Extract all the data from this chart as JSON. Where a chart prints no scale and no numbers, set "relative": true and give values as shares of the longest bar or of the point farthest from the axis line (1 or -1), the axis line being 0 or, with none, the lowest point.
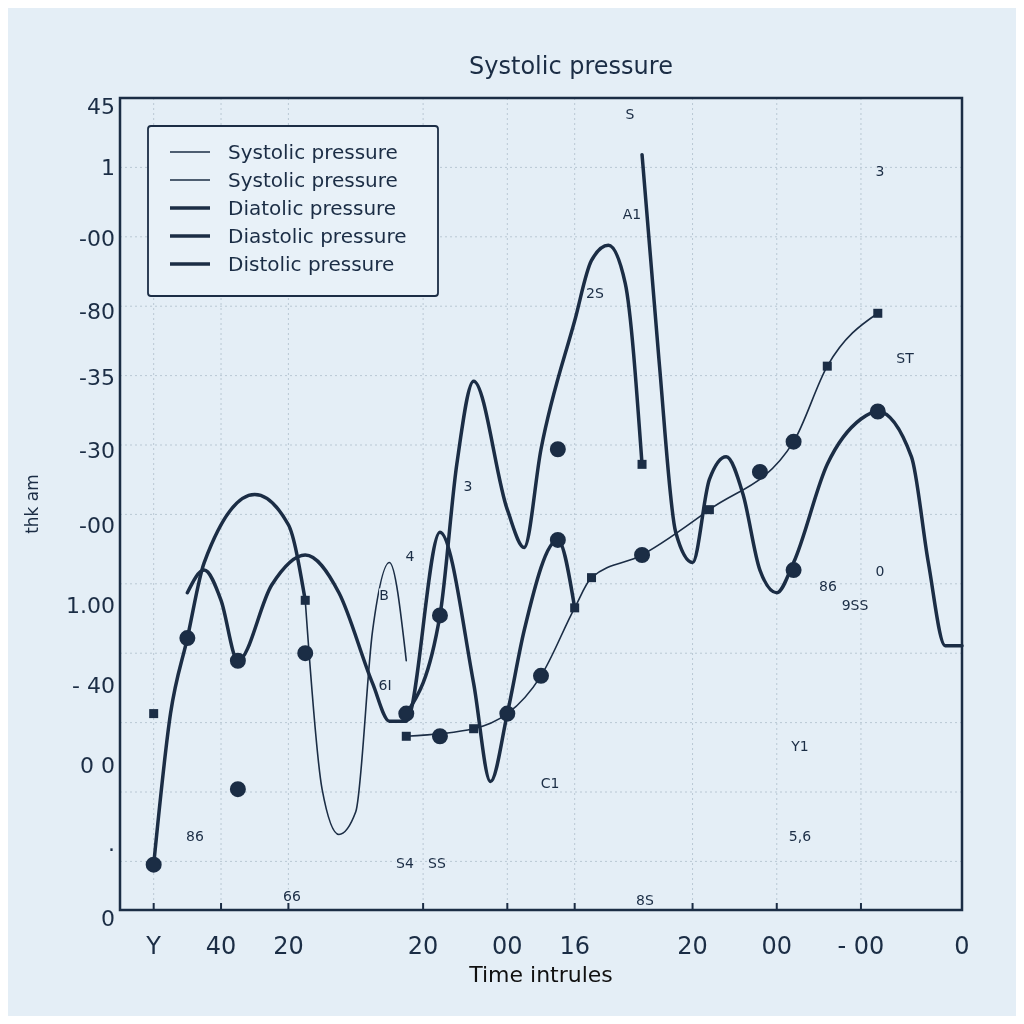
{
  "chart_data": {
    "type": "line",
    "title": "Systolic pressure",
    "xlabel": "Time intrules",
    "ylabel": "thk am",
    "relative": true,
    "categories": [
      null,
      null,
      "Y",
      null,
      null,
      null,
      "40",
      null,
      null,
      null,
      "20",
      null,
      null,
      null,
      null,
      null,
      null,
      null,
      "20",
      null,
      null,
      null,
      null,
      "00",
      null,
      null,
      null,
      "16",
      null,
      null,
      null,
      null,
      null,
      null,
      "20",
      null,
      null,
      null,
      null,
      "00",
      null,
      null,
      null,
      null,
      "- 00",
      null,
      null,
      null,
      null,
      null,
      "0"
    ],
    "grid": true,
    "legend": "top left",
    "line_style": "solid",
    "series": [
      {
        "name": "Systolic pressure",
        "color": "#1b2d45",
        "values": [
          null,
          null,
          null,
          null,
          null,
          null,
          null,
          null,
          null,
          null,
          null,
          null,
          null,
          null,
          null,
          null,
          null,
          0.23,
          null,
          null,
          null,
          0.24,
          null,
          null,
          null,
          0.31,
          null,
          0.4,
          0.44,
          null,
          null,
          0.47,
          null,
          null,
          null,
          0.53,
          null,
          null,
          null,
          null,
          0.62,
          null,
          0.72,
          null,
          null,
          0.79,
          null,
          null,
          null,
          null,
          null
        ]
      },
      {
        "name": "Systolic pressure",
        "color": "#1b2d45",
        "values": [
          null,
          null,
          null,
          null,
          null,
          null,
          null,
          null,
          null,
          null,
          null,
          0.41,
          0.16,
          0.1,
          0.13,
          0.37,
          0.46,
          0.33,
          null,
          null,
          null,
          null,
          null,
          null,
          null,
          null,
          null,
          null,
          null,
          null,
          null,
          null,
          null,
          null,
          null,
          null,
          null,
          null,
          null,
          null,
          null,
          null,
          null,
          null,
          null,
          null,
          null,
          null,
          null,
          null,
          null
        ]
      },
      {
        "name": "Diatolic pressure",
        "color": "#1b2d45",
        "values": [
          null,
          null,
          null,
          null,
          null,
          null,
          null,
          null,
          null,
          null,
          null,
          null,
          null,
          null,
          null,
          null,
          null,
          0.26,
          null,
          0.39,
          0.59,
          0.7,
          null,
          0.53,
          0.48,
          0.61,
          null,
          0.78,
          0.86,
          0.88,
          0.83,
          0.59,
          null,
          null,
          null,
          null,
          null,
          null,
          null,
          null,
          null,
          null,
          null,
          null,
          null,
          null,
          null,
          null,
          null,
          null,
          null
        ]
      },
      {
        "name": "Diastolic pressure",
        "color": "#1b2d45",
        "values": [
          null,
          null,
          0.06,
          0.26,
          0.36,
          0.46,
          null,
          null,
          0.55,
          null,
          0.51,
          0.41,
          null,
          null,
          null,
          null,
          null,
          null,
          null,
          null,
          null,
          null,
          null,
          null,
          null,
          null,
          null,
          null,
          null,
          null,
          null,
          null,
          null,
          null,
          null,
          null,
          null,
          null,
          null,
          null,
          null,
          null,
          null,
          null,
          null,
          null,
          null,
          null,
          null,
          null,
          null
        ]
      },
      {
        "name": "Distolic pressure",
        "color": "#1b2d45",
        "values": [
          null,
          null,
          null,
          null,
          0.42,
          0.45,
          0.41,
          0.33,
          null,
          0.43,
          null,
          0.47,
          null,
          0.42,
          null,
          0.3,
          0.25,
          0.25,
          null,
          0.5,
          null,
          0.3,
          0.17,
          0.26,
          0.37,
          null,
          0.49,
          0.4,
          null,
          null,
          null,
          null,
          null,
          null,
          null,
          null,
          null,
          null,
          null,
          null,
          null,
          null,
          null,
          null,
          null,
          null,
          null,
          null,
          null,
          null,
          null
        ]
      },
      {
        "color": "#1b2d45",
        "values": [
          null,
          null,
          null,
          null,
          null,
          null,
          null,
          null,
          null,
          null,
          null,
          null,
          null,
          null,
          null,
          null,
          null,
          null,
          null,
          null,
          null,
          null,
          null,
          null,
          null,
          null,
          null,
          null,
          null,
          null,
          null,
          1.0,
          0.73,
          0.5,
          0.46,
          0.57,
          0.6,
          0.55,
          0.45,
          0.42,
          0.46,
          null,
          0.59,
          null,
          0.65,
          0.66,
          null,
          0.6,
          0.46,
          0.35,
          0.35
        ]
      },
      {
        "type": "scatter",
        "color": "#1b2d45",
        "marker": "circle",
        "values": [
          null,
          null,
          null,
          null,
          0.36,
          null,
          null,
          0.33,
          null,
          null,
          null,
          0.34,
          null,
          null,
          null,
          null,
          null,
          0.26,
          null,
          0.39,
          null,
          null,
          null,
          0.26,
          null,
          0.31,
          0.61,
          null,
          null,
          null,
          null,
          0.47,
          null,
          null,
          null,
          null,
          null,
          null,
          null,
          null,
          0.45,
          null,
          null,
          null,
          null,
          null,
          null,
          null,
          null,
          null,
          null
        ]
      },
      {
        "type": "scatter",
        "color": "#1b2d45",
        "marker": "circle",
        "values": [
          null,
          null,
          0.06,
          null,
          null,
          null,
          null,
          0.16,
          null,
          null,
          null,
          null,
          null,
          null,
          null,
          null,
          null,
          null,
          null,
          0.23,
          null,
          null,
          null,
          null,
          null,
          null,
          0.49,
          null,
          null,
          null,
          null,
          null,
          null,
          null,
          null,
          null,
          null,
          null,
          0.58,
          null,
          0.62,
          null,
          null,
          null,
          null,
          0.66,
          null,
          null,
          null,
          null,
          null
        ]
      },
      {
        "type": "scatter",
        "color": "#1b2d45",
        "marker": "square",
        "values": [
          null,
          null,
          0.26,
          null,
          null,
          null,
          null,
          null,
          null,
          null,
          null,
          0.41,
          null,
          null,
          null,
          null,
          null,
          0.23,
          null,
          null,
          null,
          0.24,
          null,
          null,
          null,
          null,
          null,
          0.4,
          0.44,
          null,
          null,
          0.59,
          null,
          null,
          null,
          0.53,
          null,
          null,
          null,
          null,
          null,
          null,
          0.72,
          null,
          null,
          0.79,
          null,
          null,
          null,
          null,
          null
        ]
      }
    ],
    "annotations": [
      "45",
      "1",
      "-00",
      "-80",
      "-35",
      "-30",
      "-00",
      "1.00",
      "- 40",
      "0 0",
      ".",
      "0",
      "4",
      "B",
      "3",
      "2S",
      "A1",
      "S",
      "3",
      "ST",
      "6I",
      "86",
      "66",
      "S4",
      "SS",
      "C1",
      "8S",
      "86",
      "9SS",
      "0",
      "Y1",
      "5,6"
    ]
  }
}
